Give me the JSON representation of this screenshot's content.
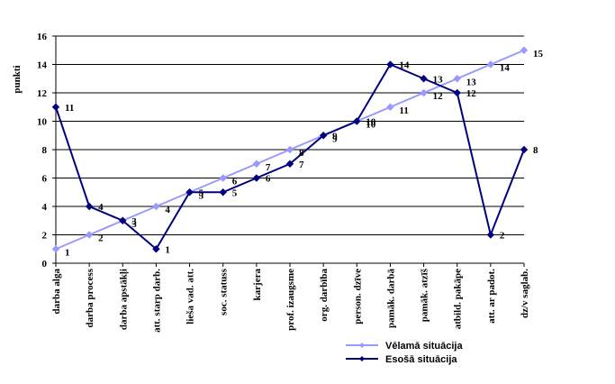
{
  "chart_data": {
    "type": "line",
    "title": "",
    "xlabel": "",
    "ylabel": "punkti",
    "ylim": [
      0,
      16
    ],
    "yticks": [
      0,
      2,
      4,
      6,
      8,
      10,
      12,
      14,
      16
    ],
    "grid": "horizontal",
    "legend_position": "bottom-right",
    "categories": [
      "darba alga",
      "darba process",
      "darba apstākļi",
      "att. starp darb.",
      "lieša vad. att.",
      "soc. statuss",
      "karjera",
      "prof. izaugsme",
      "org. darbība",
      "person. dzīve",
      "pamāk. darbā",
      "pamāk. atzīš",
      "atbild. pakāpe",
      "att. ar padot.",
      "dz/v saglab."
    ],
    "series": [
      {
        "name": "Vēlamā situācija",
        "color": "#9999ff",
        "marker": "diamond",
        "values": [
          1,
          2,
          3,
          4,
          5,
          6,
          7,
          8,
          9,
          10,
          11,
          12,
          13,
          14,
          15
        ]
      },
      {
        "name": "Esošā situācija",
        "color": "#000080",
        "marker": "diamond",
        "values": [
          11,
          4,
          3,
          1,
          5,
          5,
          6,
          7,
          9,
          10,
          14,
          13,
          12,
          2,
          8
        ]
      }
    ]
  }
}
